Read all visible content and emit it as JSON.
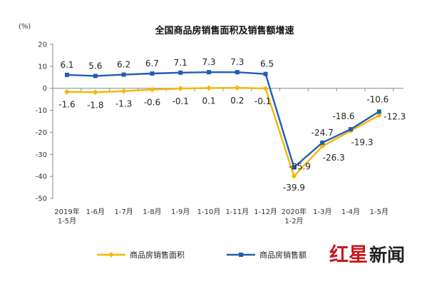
{
  "chart_data": {
    "type": "line",
    "title": "全国商品房销售面积及销售额增速",
    "y_unit": "(%)",
    "ylim": [
      -50,
      20
    ],
    "y_ticks": [
      20,
      10,
      0,
      -10,
      -20,
      -30,
      -40,
      -50
    ],
    "grid": false,
    "legend_position": "bottom",
    "categories": [
      [
        "2019年",
        "1-5月"
      ],
      [
        "1-6月"
      ],
      [
        "1-7月"
      ],
      [
        "1-8月"
      ],
      [
        "1-9月"
      ],
      [
        "1-10月"
      ],
      [
        "1-11月"
      ],
      [
        "1-12月"
      ],
      [
        "2020年",
        "1-2月"
      ],
      [
        "1-3月"
      ],
      [
        "1-4月"
      ],
      [
        "1-5月"
      ]
    ],
    "series": [
      {
        "name": "商品房销售面积",
        "color": "#f5b800",
        "marker": "diamond",
        "values": [
          -1.6,
          -1.8,
          -1.3,
          -0.6,
          -0.1,
          0.1,
          0.2,
          -0.1,
          -39.9,
          -26.3,
          -19.3,
          -12.3
        ],
        "labels": [
          "-1.6",
          "-1.8",
          "-1.3",
          "-0.6",
          "-0.1",
          "0.1",
          "0.2",
          "-0.1",
          "-39.9",
          "-26.3",
          "-19.3",
          "-12.3"
        ]
      },
      {
        "name": "商品房销售额",
        "color": "#1f5eb8",
        "marker": "square",
        "values": [
          6.1,
          5.6,
          6.2,
          6.7,
          7.1,
          7.3,
          7.3,
          6.5,
          -35.9,
          -24.7,
          -18.6,
          -10.6
        ],
        "labels": [
          "6.1",
          "5.6",
          "6.2",
          "6.7",
          "7.1",
          "7.3",
          "7.3",
          "6.5",
          "-35.9",
          "-24.7",
          "-18.6",
          "-10.6"
        ]
      }
    ]
  },
  "watermark": {
    "text_red": "红星",
    "text_dark": "新闻"
  }
}
